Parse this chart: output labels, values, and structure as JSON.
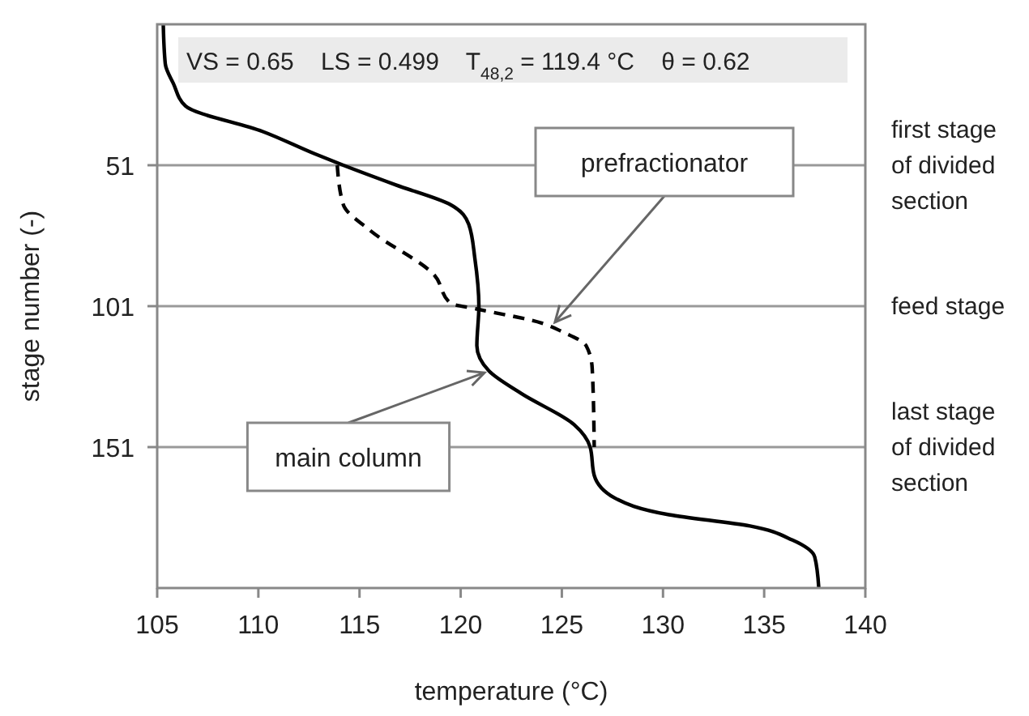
{
  "chart_data": {
    "type": "line",
    "xlabel": "temperature (°C)",
    "ylabel": "stage number (-)",
    "xlim": [
      105,
      140
    ],
    "xticks": [
      105,
      110,
      115,
      120,
      125,
      130,
      135,
      140
    ],
    "ylim": [
      201,
      1
    ],
    "yticks": [
      51,
      101,
      151
    ],
    "grid": false,
    "series": [
      {
        "color": "#000000",
        "line_style": "solid",
        "x": [
          105.3,
          105.4,
          105.8,
          106.4,
          110.2,
          112.8,
          114.2,
          116.8,
          119.5,
          120.4,
          120.7,
          120.9,
          120.8,
          121.4,
          123,
          125.6,
          126.4,
          126.6,
          127.6,
          130.3,
          134.3,
          136.4,
          137.5,
          137.7
        ],
        "values": [
          1,
          15,
          22,
          30,
          39,
          47,
          51,
          58,
          65,
          72,
          84,
          101,
          115,
          124,
          132,
          143,
          151,
          161,
          169,
          175,
          179,
          184,
          190,
          201
        ]
      },
      {
        "color": "#000000",
        "line_style": "dashed",
        "x": [
          113.9,
          114.2,
          115.5,
          118.7,
          119.5,
          120.8,
          124,
          125,
          126.2,
          126.5,
          126.6
        ],
        "values": [
          51,
          65,
          74,
          90,
          100,
          102,
          107,
          110,
          115,
          123,
          151
        ]
      }
    ],
    "ref_lines": [
      {
        "axis": "y",
        "value": 51,
        "label": "first stage of divided section",
        "color": "#999999"
      },
      {
        "axis": "y",
        "value": 101,
        "label": "feed stage",
        "color": "#999999"
      },
      {
        "axis": "y",
        "value": 151,
        "label": "last stage of divided section",
        "color": "#999999"
      }
    ],
    "annotations": [
      "VS = 0.65    LS = 0.499    T$_{48,2}$ = 119.4 °C    θ = 0.62",
      {
        "text": "prefractionator",
        "x": 124.5,
        "y": 108
      },
      {
        "text": "main column",
        "x": 121.4,
        "y": 124
      }
    ]
  }
}
